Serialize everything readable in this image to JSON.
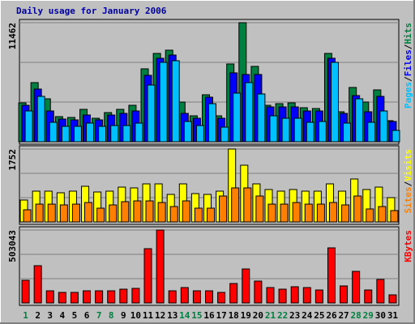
{
  "chart_data": [
    {
      "type": "bar",
      "title": "Daily usage for January 2006",
      "ylim": [
        0,
        11462
      ],
      "yticks": [
        11462
      ],
      "legend_separator": "/",
      "series": [
        {
          "name": "Hits",
          "color": "#008040",
          "values": [
            3744,
            5694,
            4134,
            2418,
            2340,
            3120,
            2262,
            2808,
            3120,
            3510,
            7020,
            8502,
            8814,
            3822,
            2496,
            4524,
            2496,
            7488,
            11462,
            7254,
            3510,
            3666,
            3744,
            3276,
            3198,
            8502,
            2886,
            5226,
            3822,
            4992,
            2028
          ]
        },
        {
          "name": "Files",
          "color": "#0000ff",
          "values": [
            3510,
            5070,
            2964,
            2184,
            2106,
            2574,
            2106,
            2574,
            2730,
            2964,
            6396,
            8034,
            8346,
            2730,
            2262,
            4290,
            2262,
            6630,
            6474,
            6474,
            3354,
            3354,
            3354,
            2964,
            2964,
            8034,
            2730,
            4446,
            2886,
            4368,
            1950
          ]
        },
        {
          "name": "Pages",
          "color": "#00c0ff",
          "values": [
            2964,
            4368,
            1872,
            1482,
            1482,
            1794,
            1482,
            1560,
            1560,
            1794,
            5460,
            7644,
            7800,
            1950,
            1560,
            3666,
            1404,
            4680,
            5694,
            4602,
            2496,
            2262,
            2262,
            1872,
            1950,
            7644,
            1794,
            4134,
            1872,
            2964,
            1092
          ]
        }
      ]
    },
    {
      "type": "bar",
      "ylim": [
        0,
        1752
      ],
      "yticks": [
        1752
      ],
      "legend_separator": "/",
      "series": [
        {
          "name": "Visits",
          "color": "#ffff00",
          "values": [
            526,
            740,
            740,
            701,
            740,
            857,
            720,
            740,
            837,
            818,
            915,
            915,
            662,
            915,
            681,
            662,
            740,
            1752,
            1363,
            915,
            779,
            740,
            779,
            740,
            740,
            915,
            740,
            1032,
            779,
            837,
            584
          ]
        },
        {
          "name": "Sites",
          "color": "#ff8000",
          "values": [
            292,
            428,
            428,
            409,
            428,
            467,
            331,
            409,
            487,
            506,
            506,
            467,
            370,
            506,
            331,
            331,
            623,
            818,
            818,
            623,
            428,
            428,
            467,
            428,
            428,
            467,
            409,
            623,
            312,
            370,
            273
          ]
        }
      ]
    },
    {
      "type": "bar",
      "ylim": [
        0,
        503043
      ],
      "yticks": [
        503043
      ],
      "categories": [
        "1",
        "2",
        "3",
        "4",
        "5",
        "6",
        "7",
        "8",
        "9",
        "10",
        "11",
        "12",
        "13",
        "14",
        "15",
        "16",
        "17",
        "18",
        "19",
        "20",
        "21",
        "22",
        "23",
        "24",
        "25",
        "26",
        "27",
        "28",
        "29",
        "30",
        "31"
      ],
      "category_colors": [
        "#008040",
        "#000000",
        "#000000",
        "#000000",
        "#000000",
        "#000000",
        "#008040",
        "#008040",
        "#000000",
        "#000000",
        "#000000",
        "#000000",
        "#000000",
        "#008040",
        "#008040",
        "#000000",
        "#000000",
        "#000000",
        "#000000",
        "#000000",
        "#008040",
        "#008040",
        "#000000",
        "#000000",
        "#000000",
        "#000000",
        "#000000",
        "#008040",
        "#008040",
        "#000000",
        "#000000"
      ],
      "series": [
        {
          "name": "KBytes",
          "color": "#ff0000",
          "values": [
            156500,
            257100,
            83800,
            72700,
            72700,
            83800,
            83800,
            83800,
            95000,
            100600,
            374500,
            503043,
            83800,
            106200,
            83800,
            83800,
            72700,
            134100,
            234700,
            150900,
            106200,
            95000,
            111800,
            106200,
            89400,
            380100,
            117400,
            218000,
            89400,
            162100,
            55900
          ]
        }
      ]
    }
  ]
}
